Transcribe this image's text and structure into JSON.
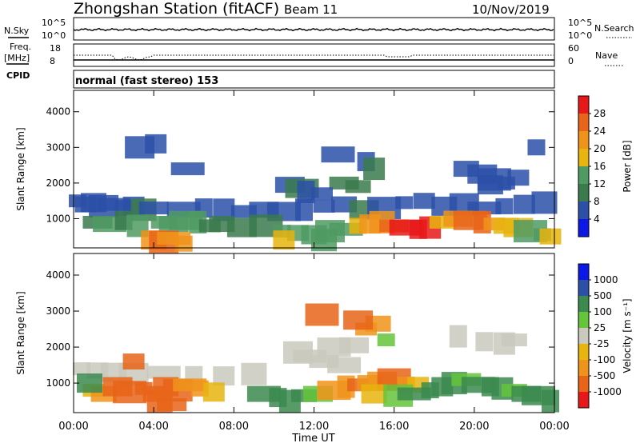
{
  "header": {
    "station": "Zhongshan Station (fitACF)",
    "beam": "Beam 11",
    "date": "10/Nov/2019"
  },
  "strip_nsky": {
    "left_label": "N.Sky",
    "left_ticks": [
      "10^5",
      "10^0"
    ],
    "right_label": "N.Search",
    "right_ticks": [
      "10^5",
      "10^0"
    ]
  },
  "strip_freq": {
    "left_label_1": "Freq.",
    "left_label_2": "[MHz]",
    "left_ticks": [
      "18",
      "8"
    ],
    "right_label": "Nave",
    "right_ticks": [
      "60",
      "0"
    ]
  },
  "strip_cpid": {
    "label": "CPID",
    "text": "normal (fast stereo) 153"
  },
  "colors": {
    "power": [
      "#0b18e6",
      "#2c50a8",
      "#3a7a4c",
      "#4f9a63",
      "#e8b40e",
      "#f0931a",
      "#e86418",
      "#e81818"
    ],
    "velocity": [
      "#e81818",
      "#e86418",
      "#f0931a",
      "#e8b40e",
      "#c9c9bd",
      "#64c43a",
      "#3b8a4f",
      "#2c50a8",
      "#0b18e6"
    ]
  },
  "chart_data": [
    {
      "type": "heatmap",
      "title": "",
      "xlabel": "Time UT",
      "ylabel": "Slant Range [km]",
      "xlim": [
        "00:00",
        "24:00"
      ],
      "ylim": [
        180,
        4600
      ],
      "x_ticks": [
        "00:00",
        "04:00",
        "08:00",
        "12:00",
        "16:00",
        "20:00",
        "00:00"
      ],
      "y_ticks": [
        1000,
        2000,
        3000,
        4000
      ],
      "colorbar": {
        "label": "Power [dB]",
        "ticks": [
          "4",
          "8",
          "12",
          "16",
          "20",
          "24",
          "28"
        ],
        "range": [
          0,
          32
        ]
      },
      "cells": [
        [
          0.2,
          1500,
          5
        ],
        [
          0.6,
          1400,
          6
        ],
        [
          1.0,
          1450,
          5
        ],
        [
          1.5,
          1350,
          6
        ],
        [
          2.0,
          1400,
          5
        ],
        [
          2.5,
          1300,
          7
        ],
        [
          3.0,
          1350,
          6
        ],
        [
          3.5,
          1250,
          8
        ],
        [
          4.0,
          1300,
          7
        ],
        [
          5.5,
          1250,
          6
        ],
        [
          6.5,
          1300,
          6
        ],
        [
          7.5,
          1250,
          5
        ],
        [
          8.5,
          1200,
          6
        ],
        [
          9.5,
          1250,
          5
        ],
        [
          10.5,
          1200,
          6
        ],
        [
          11.5,
          1250,
          7
        ],
        [
          12.5,
          1350,
          5
        ],
        [
          13.5,
          1400,
          6
        ],
        [
          14.5,
          1250,
          8
        ],
        [
          15.5,
          1300,
          6
        ],
        [
          16.5,
          1450,
          7
        ],
        [
          17.5,
          1500,
          6
        ],
        [
          18.5,
          1350,
          5
        ],
        [
          19.5,
          1400,
          6
        ],
        [
          20.5,
          1300,
          7
        ],
        [
          21.5,
          1350,
          6
        ],
        [
          22.5,
          1400,
          5
        ],
        [
          23.5,
          1450,
          6
        ],
        [
          1.2,
          900,
          11
        ],
        [
          1.8,
          850,
          12
        ],
        [
          2.5,
          950,
          11
        ],
        [
          3.2,
          800,
          13
        ],
        [
          4.5,
          900,
          14
        ],
        [
          5.0,
          850,
          15
        ],
        [
          5.6,
          950,
          13
        ],
        [
          6.2,
          900,
          12
        ],
        [
          6.8,
          800,
          11
        ],
        [
          7.4,
          850,
          10
        ],
        [
          8.4,
          750,
          8
        ],
        [
          9.6,
          800,
          9
        ],
        [
          10.4,
          650,
          12
        ],
        [
          11.2,
          600,
          13
        ],
        [
          12.0,
          550,
          14
        ],
        [
          12.8,
          650,
          15
        ],
        [
          13.6,
          700,
          14
        ],
        [
          14.2,
          800,
          17
        ],
        [
          14.8,
          850,
          21
        ],
        [
          15.4,
          900,
          22
        ],
        [
          16.0,
          800,
          25
        ],
        [
          16.6,
          750,
          29
        ],
        [
          17.2,
          700,
          30
        ],
        [
          17.8,
          750,
          28
        ],
        [
          18.4,
          900,
          18
        ],
        [
          19.2,
          1000,
          22
        ],
        [
          19.8,
          950,
          25
        ],
        [
          20.4,
          900,
          24
        ],
        [
          21.0,
          850,
          21
        ],
        [
          21.6,
          800,
          18
        ],
        [
          22.2,
          750,
          16
        ],
        [
          22.8,
          650,
          14
        ],
        [
          23.4,
          550,
          12
        ],
        [
          23.8,
          500,
          18
        ],
        [
          4.0,
          400,
          22
        ],
        [
          4.5,
          350,
          25
        ],
        [
          5.0,
          450,
          23
        ],
        [
          5.5,
          300,
          21
        ],
        [
          10.5,
          400,
          16
        ],
        [
          12.5,
          400,
          14
        ],
        [
          13.5,
          2000,
          9
        ],
        [
          13.2,
          2800,
          6
        ],
        [
          14.6,
          2600,
          7
        ],
        [
          15.0,
          2400,
          8
        ],
        [
          14.2,
          1900,
          9
        ],
        [
          10.8,
          1950,
          7
        ],
        [
          11.4,
          1850,
          8
        ],
        [
          11.6,
          1750,
          6
        ],
        [
          12.4,
          1700,
          7
        ],
        [
          19.6,
          2400,
          6
        ],
        [
          20.4,
          2250,
          7
        ],
        [
          21.0,
          2100,
          6
        ],
        [
          21.6,
          2000,
          7
        ],
        [
          22.2,
          2150,
          6
        ],
        [
          20.8,
          1950,
          5
        ],
        [
          3.3,
          3000,
          6
        ],
        [
          5.7,
          2400,
          6
        ],
        [
          23.1,
          3000,
          6
        ],
        [
          4.1,
          3100,
          5
        ]
      ]
    },
    {
      "type": "heatmap",
      "title": "",
      "xlabel": "Time UT",
      "ylabel": "Slant Range [km]",
      "xlim": [
        "00:00",
        "24:00"
      ],
      "ylim": [
        180,
        4600
      ],
      "x_ticks": [
        "00:00",
        "04:00",
        "08:00",
        "12:00",
        "16:00",
        "20:00",
        "00:00"
      ],
      "y_ticks": [
        1000,
        2000,
        3000,
        4000
      ],
      "colorbar": {
        "label": "Velocity [m s⁻¹]",
        "ticks": [
          "1000",
          "500",
          "100",
          "25",
          "-25",
          "-100",
          "-500",
          "-1000"
        ]
      },
      "cells": [
        [
          0.4,
          1400,
          4
        ],
        [
          1.2,
          1350,
          4
        ],
        [
          2.0,
          1300,
          4
        ],
        [
          3.0,
          1250,
          4
        ],
        [
          4.5,
          1300,
          4
        ],
        [
          6.0,
          1250,
          4
        ],
        [
          7.5,
          1200,
          4
        ],
        [
          9.0,
          1250,
          4
        ],
        [
          12.5,
          1600,
          4
        ],
        [
          13.5,
          1500,
          4
        ],
        [
          20.5,
          2150,
          4
        ],
        [
          21.5,
          2100,
          4
        ],
        [
          22.0,
          2200,
          4
        ],
        [
          14.0,
          2050,
          4
        ],
        [
          13.0,
          2000,
          4
        ],
        [
          19.2,
          2300,
          4
        ],
        [
          1.0,
          800,
          3
        ],
        [
          1.5,
          700,
          2
        ],
        [
          2.2,
          900,
          1
        ],
        [
          2.8,
          750,
          1
        ],
        [
          3.5,
          850,
          1
        ],
        [
          4.0,
          700,
          1
        ],
        [
          4.6,
          900,
          1
        ],
        [
          5.2,
          800,
          1
        ],
        [
          5.8,
          950,
          2
        ],
        [
          6.3,
          850,
          2
        ],
        [
          7.0,
          750,
          3
        ],
        [
          4.3,
          500,
          1
        ],
        [
          4.9,
          400,
          1
        ],
        [
          9.5,
          700,
          6
        ],
        [
          10.2,
          600,
          6
        ],
        [
          10.8,
          500,
          6
        ],
        [
          11.5,
          650,
          6
        ],
        [
          12.2,
          700,
          5
        ],
        [
          13.0,
          800,
          2
        ],
        [
          13.6,
          900,
          2
        ],
        [
          14.2,
          950,
          1
        ],
        [
          14.8,
          1000,
          2
        ],
        [
          15.4,
          1050,
          2
        ],
        [
          16.0,
          1100,
          1
        ],
        [
          16.6,
          1000,
          2
        ],
        [
          17.2,
          950,
          3
        ],
        [
          15.0,
          700,
          3
        ],
        [
          16.2,
          650,
          5
        ],
        [
          17.0,
          700,
          6
        ],
        [
          17.8,
          800,
          6
        ],
        [
          18.4,
          900,
          6
        ],
        [
          19.0,
          1000,
          6
        ],
        [
          19.6,
          1100,
          5
        ],
        [
          20.2,
          950,
          6
        ],
        [
          20.8,
          900,
          6
        ],
        [
          21.4,
          850,
          6
        ],
        [
          22.0,
          800,
          5
        ],
        [
          22.6,
          700,
          6
        ],
        [
          23.2,
          650,
          6
        ],
        [
          23.8,
          500,
          6
        ],
        [
          14.6,
          2500,
          2
        ],
        [
          15.2,
          2650,
          2
        ],
        [
          14.2,
          2750,
          1
        ],
        [
          12.4,
          2900,
          1
        ],
        [
          15.6,
          2200,
          5
        ],
        [
          3.0,
          1600,
          1
        ],
        [
          0.8,
          1000,
          6
        ],
        [
          11.2,
          1850,
          4
        ],
        [
          11.8,
          1750,
          4
        ]
      ]
    }
  ]
}
